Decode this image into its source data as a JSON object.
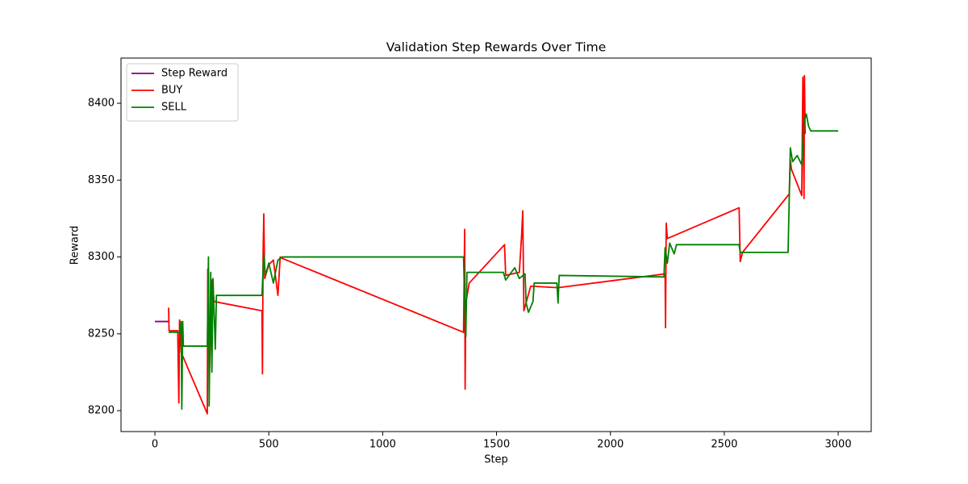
{
  "chart_data": {
    "type": "line",
    "title": "Validation Step Rewards Over Time",
    "xlabel": "Step",
    "ylabel": "Reward",
    "xlim": [
      -149,
      3145
    ],
    "ylim": [
      8186.4,
      8429.4
    ],
    "xticks": [
      0,
      500,
      1000,
      1500,
      2000,
      2500,
      3000
    ],
    "yticks": [
      8200,
      8250,
      8300,
      8350,
      8400
    ],
    "legend": "upper left",
    "grid": false,
    "series": [
      {
        "name": "Step Reward",
        "color": "#800080",
        "x": [
          0,
          60
        ],
        "values": [
          8258,
          8258
        ]
      },
      {
        "name": "BUY",
        "color": "#ff0000",
        "x": [
          60,
          62,
          100,
          105,
          108,
          115,
          230,
          232,
          240,
          250,
          260,
          470,
          472,
          475,
          478,
          482,
          500,
          520,
          540,
          550,
          560,
          1355,
          1360,
          1362,
          1365,
          1380,
          1535,
          1540,
          1600,
          1610,
          1615,
          1620,
          1650,
          1770,
          2240,
          2242,
          2245,
          2250,
          2565,
          2570,
          2580,
          2785,
          2790,
          2795,
          2840,
          2845,
          2850,
          2852,
          2855
        ],
        "values": [
          8267,
          8252,
          8252,
          8205,
          8259,
          8238,
          8198,
          8292,
          8228,
          8285,
          8271,
          8265,
          8224,
          8303,
          8328,
          8286,
          8295,
          8298,
          8275,
          8300,
          8299,
          8251,
          8318,
          8214,
          8270,
          8283,
          8308,
          8288,
          8290,
          8314,
          8330,
          8265,
          8281,
          8280,
          8289,
          8254,
          8322,
          8312,
          8332,
          8297,
          8303,
          8341,
          8363,
          8357,
          8340,
          8417,
          8338,
          8418,
          8380
        ]
      },
      {
        "name": "SELL",
        "color": "#008000",
        "x": [
          60,
          110,
          115,
          118,
          122,
          125,
          230,
          235,
          238,
          245,
          250,
          255,
          265,
          270,
          470,
          478,
          485,
          500,
          520,
          540,
          560,
          1355,
          1360,
          1365,
          1370,
          1530,
          1540,
          1580,
          1600,
          1625,
          1630,
          1640,
          1660,
          1665,
          1765,
          1770,
          1775,
          2235,
          2240,
          2250,
          2260,
          2280,
          2290,
          2565,
          2570,
          2780,
          2790,
          2800,
          2820,
          2840,
          2850,
          2860,
          2870,
          2880,
          3000
        ],
        "values": [
          8251,
          8251,
          8258,
          8201,
          8258,
          8242,
          8242,
          8300,
          8203,
          8290,
          8225,
          8286,
          8240,
          8275,
          8275,
          8302,
          8288,
          8296,
          8283,
          8298,
          8300,
          8300,
          8271,
          8248,
          8290,
          8290,
          8285,
          8293,
          8286,
          8289,
          8270,
          8264,
          8271,
          8283,
          8283,
          8270,
          8288,
          8287,
          8306,
          8296,
          8309,
          8302,
          8308,
          8308,
          8303,
          8303,
          8371,
          8362,
          8366,
          8360,
          8388,
          8393,
          8385,
          8382,
          8382
        ]
      }
    ]
  }
}
